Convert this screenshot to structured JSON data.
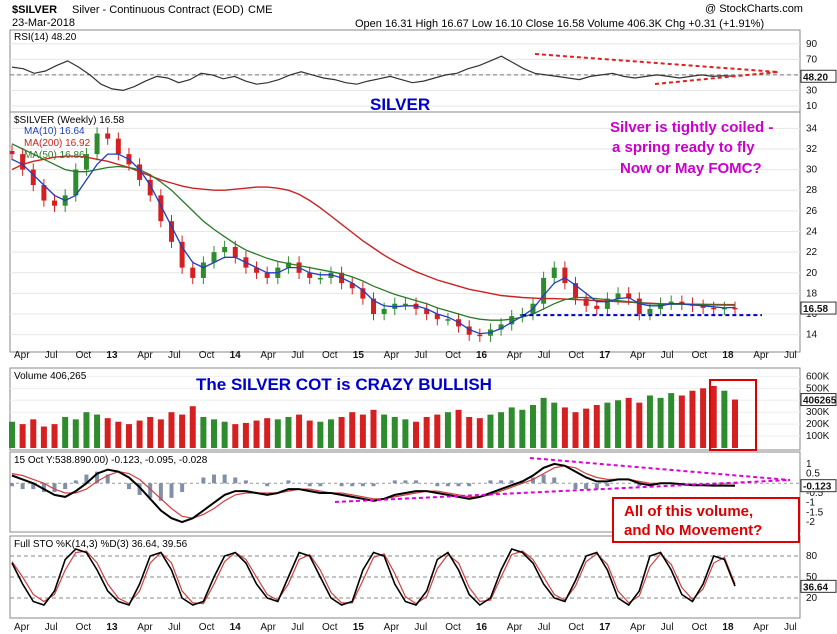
{
  "header": {
    "symbol": "$SILVER",
    "name": "Silver - Continuous Contract (EOD)",
    "exchange": "CME",
    "date": "23-Mar-2018",
    "quote": "Open 16.31  High 16.67  Low 16.10  Close 16.58  Volume 406.3K  Chg +0.31 (+1.91%)",
    "watermark": "@ StockCharts.com"
  },
  "colors": {
    "up": "#2e8b2e",
    "down": "#d42020",
    "ma10": "#1f3fbf",
    "ma200": "#cc2222",
    "ma50": "#2a7a2a",
    "annot": "#cc00cc",
    "blue": "#0000cc",
    "box": "#dd0000"
  },
  "chart_data": [
    {
      "type": "line",
      "panel": "RSI",
      "title": "RSI(14) 48.20",
      "ylim": [
        10,
        100
      ],
      "ticks": [
        "90",
        "70",
        "50",
        "30",
        "10"
      ],
      "value_label": "48.20",
      "series": [
        {
          "name": "RSI(14)",
          "values": [
            60,
            58,
            52,
            55,
            62,
            68,
            60,
            50,
            38,
            32,
            30,
            35,
            42,
            48,
            46,
            40,
            44,
            52,
            50,
            45,
            48,
            42,
            38,
            40,
            44,
            50,
            54,
            50,
            46,
            44,
            40,
            38,
            42,
            45,
            48,
            44,
            40,
            42,
            46,
            50,
            52,
            58,
            62,
            68,
            74,
            66,
            58,
            52,
            50,
            48,
            46,
            44,
            48,
            50,
            52,
            48,
            46,
            48,
            50,
            48,
            46,
            48,
            50,
            48,
            49,
            48
          ]
        }
      ],
      "annotations": [
        "SILVER"
      ]
    },
    {
      "type": "candlestick",
      "panel": "Price",
      "title": "$SILVER (Weekly) 16.58",
      "ylim": [
        13,
        35
      ],
      "ticks": [
        "34",
        "32",
        "30",
        "28",
        "26",
        "24",
        "22",
        "20",
        "18",
        "16",
        "14"
      ],
      "value_label": "16.58",
      "xlabels": [
        "Apr",
        "Jul",
        "Oct",
        "13",
        "Apr",
        "Jul",
        "Oct",
        "14",
        "Apr",
        "Jul",
        "Oct",
        "15",
        "Apr",
        "Jul",
        "Oct",
        "16",
        "Apr",
        "Jul",
        "Oct",
        "17",
        "Apr",
        "Jul",
        "Oct",
        "18",
        "Apr",
        "Jul"
      ],
      "close": [
        31.5,
        30.0,
        28.5,
        27.0,
        26.5,
        27.5,
        30.0,
        31.5,
        33.5,
        33.0,
        31.5,
        30.5,
        29.0,
        27.5,
        25.0,
        23.0,
        20.5,
        19.5,
        21.0,
        22.0,
        22.5,
        21.5,
        20.5,
        20.0,
        19.5,
        20.5,
        21.0,
        20.0,
        19.5,
        19.5,
        20.0,
        19.0,
        18.5,
        17.5,
        16.0,
        16.5,
        17.0,
        17.0,
        16.5,
        16.0,
        15.5,
        15.5,
        14.8,
        14.0,
        13.9,
        14.5,
        15.0,
        15.8,
        16.0,
        17.0,
        19.5,
        20.5,
        19.0,
        17.5,
        16.8,
        16.5,
        17.5,
        18.0,
        17.5,
        16.0,
        16.5,
        17.0,
        17.2,
        17.0,
        16.8,
        16.6,
        16.5,
        16.6,
        16.58
      ],
      "ma10": [
        31.0,
        30.5,
        29.5,
        28.5,
        27.5,
        27.0,
        27.5,
        29.0,
        30.5,
        31.5,
        31.5,
        31.0,
        30.0,
        28.5,
        26.5,
        24.5,
        22.5,
        21.0,
        20.5,
        21.0,
        21.5,
        21.5,
        21.0,
        20.5,
        20.0,
        20.0,
        20.5,
        20.5,
        20.0,
        19.8,
        19.8,
        19.5,
        19.0,
        18.3,
        17.3,
        16.8,
        16.7,
        16.8,
        16.8,
        16.5,
        16.0,
        15.7,
        15.2,
        14.5,
        14.1,
        14.2,
        14.6,
        15.2,
        15.8,
        16.5,
        17.8,
        19.0,
        19.5,
        18.8,
        18.0,
        17.2,
        17.2,
        17.5,
        17.6,
        17.0,
        16.8,
        16.8,
        17.0,
        17.0,
        16.9,
        16.8,
        16.7,
        16.6,
        16.64
      ],
      "ma50": [
        32.5,
        32.0,
        31.5,
        31.0,
        30.5,
        30.0,
        29.8,
        29.8,
        30.0,
        30.2,
        30.3,
        30.2,
        30.0,
        29.5,
        28.8,
        28.0,
        27.0,
        26.0,
        25.0,
        24.2,
        23.5,
        22.8,
        22.2,
        21.8,
        21.4,
        21.1,
        20.9,
        20.7,
        20.5,
        20.3,
        20.1,
        19.9,
        19.6,
        19.2,
        18.7,
        18.3,
        17.9,
        17.6,
        17.3,
        17.0,
        16.6,
        16.3,
        16.0,
        15.7,
        15.5,
        15.4,
        15.4,
        15.5,
        15.7,
        16.0,
        16.5,
        17.0,
        17.4,
        17.6,
        17.6,
        17.5,
        17.4,
        17.3,
        17.2,
        17.1,
        17.0,
        16.95,
        16.95,
        16.95,
        16.9,
        16.9,
        16.88,
        16.87,
        16.86
      ],
      "ma200": [
        30.0,
        30.5,
        30.8,
        31.0,
        31.2,
        31.3,
        31.3,
        31.2,
        31.0,
        30.8,
        30.5,
        30.2,
        29.8,
        29.4,
        29.0,
        28.7,
        28.4,
        28.2,
        28.1,
        28.0,
        28.0,
        28.1,
        28.2,
        28.3,
        28.3,
        28.2,
        28.0,
        27.6,
        27.0,
        26.3,
        25.5,
        24.7,
        23.9,
        23.1,
        22.4,
        21.7,
        21.1,
        20.6,
        20.1,
        19.7,
        19.3,
        19.0,
        18.7,
        18.4,
        18.2,
        18.0,
        17.8,
        17.7,
        17.6,
        17.55,
        17.5,
        17.5,
        17.45,
        17.4,
        17.35,
        17.3,
        17.25,
        17.2,
        17.15,
        17.1,
        17.05,
        17.0,
        16.98,
        16.96,
        16.95,
        16.94,
        16.93,
        16.92,
        16.92
      ],
      "support_line": 15.9,
      "legend": [
        "MA(10) 16.64",
        "MA(200) 16.92",
        "MA(50) 16.86"
      ],
      "annotations": [
        "Silver is tightly coiled -",
        "a spring ready to fly",
        "Now or May FOMC?"
      ]
    },
    {
      "type": "bar",
      "panel": "Volume",
      "title": "Volume 406,265",
      "ylim": [
        0,
        620
      ],
      "ticks": [
        "600K",
        "500K",
        "400K",
        "300K",
        "200K",
        "100K"
      ],
      "value_label": "406265",
      "values": [
        220,
        200,
        240,
        180,
        200,
        260,
        240,
        300,
        280,
        250,
        220,
        200,
        230,
        260,
        240,
        300,
        280,
        350,
        260,
        240,
        220,
        200,
        210,
        230,
        250,
        240,
        260,
        280,
        230,
        220,
        240,
        260,
        300,
        280,
        320,
        280,
        260,
        240,
        220,
        260,
        280,
        300,
        320,
        260,
        250,
        280,
        300,
        340,
        320,
        360,
        420,
        380,
        340,
        300,
        330,
        360,
        380,
        400,
        420,
        380,
        440,
        420,
        460,
        440,
        480,
        500,
        520,
        480,
        406
      ],
      "annotations": [
        "The SILVER COT is CRAZY BULLISH"
      ]
    },
    {
      "type": "line",
      "panel": "MACD",
      "title": "15 Oct Y:538.890.00) -0.123, -0.095, -0.028",
      "ticks": [
        "1",
        "0.5",
        "0.0",
        "-0.5",
        "-1",
        "-1.5",
        "-2"
      ],
      "value_label": "-0.123",
      "series": [
        {
          "name": "MACD",
          "values": [
            0.4,
            0.2,
            0.0,
            -0.3,
            -0.6,
            -0.7,
            -0.4,
            0.0,
            0.5,
            0.7,
            0.6,
            0.3,
            -0.2,
            -0.8,
            -1.4,
            -1.8,
            -2.0,
            -1.8,
            -1.4,
            -1.0,
            -0.6,
            -0.4,
            -0.4,
            -0.5,
            -0.6,
            -0.5,
            -0.3,
            -0.3,
            -0.4,
            -0.5,
            -0.5,
            -0.6,
            -0.7,
            -0.8,
            -0.9,
            -0.8,
            -0.6,
            -0.5,
            -0.4,
            -0.4,
            -0.5,
            -0.6,
            -0.7,
            -0.8,
            -0.7,
            -0.5,
            -0.3,
            -0.1,
            0.1,
            0.4,
            0.8,
            1.0,
            0.9,
            0.6,
            0.3,
            0.1,
            0.1,
            0.2,
            0.2,
            0.0,
            -0.1,
            0.0,
            0.0,
            -0.05,
            -0.1,
            -0.1,
            -0.12,
            -0.12,
            -0.123
          ]
        },
        {
          "name": "Signal",
          "values": [
            0.5,
            0.4,
            0.2,
            0.0,
            -0.3,
            -0.5,
            -0.5,
            -0.3,
            0.1,
            0.4,
            0.6,
            0.5,
            0.2,
            -0.3,
            -0.8,
            -1.3,
            -1.7,
            -1.8,
            -1.6,
            -1.3,
            -0.9,
            -0.6,
            -0.5,
            -0.5,
            -0.5,
            -0.5,
            -0.4,
            -0.3,
            -0.3,
            -0.4,
            -0.5,
            -0.5,
            -0.6,
            -0.7,
            -0.8,
            -0.8,
            -0.7,
            -0.6,
            -0.5,
            -0.4,
            -0.4,
            -0.5,
            -0.6,
            -0.7,
            -0.7,
            -0.6,
            -0.4,
            -0.2,
            0.0,
            0.2,
            0.5,
            0.8,
            0.9,
            0.8,
            0.5,
            0.3,
            0.2,
            0.2,
            0.2,
            0.1,
            0.0,
            0.0,
            0.0,
            -0.03,
            -0.07,
            -0.08,
            -0.09,
            -0.094,
            -0.095
          ]
        }
      ],
      "annotations": [
        "All of this volume,",
        "and No Movement?"
      ]
    },
    {
      "type": "line",
      "panel": "Stochastic",
      "title": "Full STO %K(14,3) %D(3) 36.64, 39.56",
      "ylim": [
        0,
        100
      ],
      "ticks": [
        "80",
        "50",
        "20"
      ],
      "value_label": "36.64",
      "series": [
        {
          "name": "%K",
          "values": [
            70,
            40,
            15,
            10,
            30,
            75,
            90,
            85,
            60,
            30,
            15,
            10,
            40,
            80,
            85,
            60,
            20,
            10,
            15,
            50,
            80,
            85,
            70,
            40,
            20,
            15,
            50,
            85,
            80,
            50,
            20,
            10,
            15,
            60,
            85,
            80,
            40,
            15,
            10,
            30,
            75,
            85,
            60,
            25,
            10,
            20,
            60,
            90,
            85,
            70,
            40,
            20,
            15,
            45,
            80,
            85,
            60,
            20,
            10,
            30,
            80,
            85,
            60,
            25,
            15,
            40,
            80,
            75,
            37
          ]
        },
        {
          "name": "%D",
          "values": [
            72,
            50,
            25,
            15,
            25,
            60,
            85,
            87,
            70,
            40,
            20,
            12,
            30,
            70,
            85,
            70,
            30,
            13,
            12,
            40,
            72,
            85,
            75,
            50,
            25,
            17,
            40,
            75,
            82,
            60,
            28,
            13,
            13,
            45,
            78,
            83,
            55,
            22,
            12,
            22,
            62,
            82,
            70,
            35,
            15,
            17,
            50,
            82,
            87,
            75,
            50,
            25,
            17,
            37,
            72,
            83,
            68,
            30,
            13,
            23,
            65,
            83,
            68,
            35,
            18,
            33,
            70,
            78,
            40
          ]
        }
      ]
    }
  ]
}
